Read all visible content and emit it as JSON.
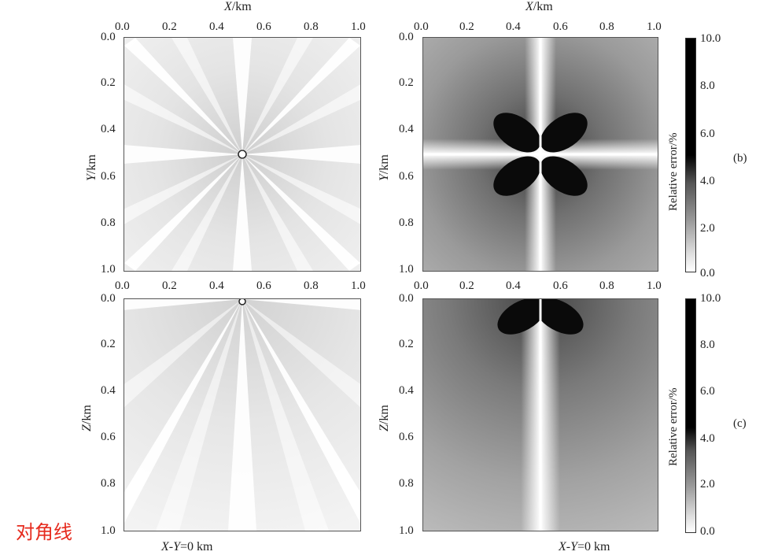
{
  "top_axis_label": {
    "var": "X",
    "unit": "/km"
  },
  "x_ticks": [
    "0.0",
    "0.2",
    "0.4",
    "0.6",
    "0.8",
    "1.0"
  ],
  "y_ticks": [
    "0.0",
    "0.2",
    "0.4",
    "0.6",
    "0.8",
    "1.0"
  ],
  "row_b": {
    "ylabel_var": "Y",
    "ylabel_unit": "/km",
    "letter": "(b)"
  },
  "row_c": {
    "ylabel_var": "Z",
    "ylabel_unit": "/km",
    "letter": "(c)",
    "bottom_label_var": "X-Y",
    "bottom_label_rest": "=0 km"
  },
  "colorbar": {
    "label": "Relative error/%",
    "ticks": [
      "10.0",
      "8.0",
      "6.0",
      "4.0",
      "2.0",
      "0.0"
    ]
  },
  "annotation": "对角线",
  "colors": {
    "annotation": "#e62b1e"
  }
}
